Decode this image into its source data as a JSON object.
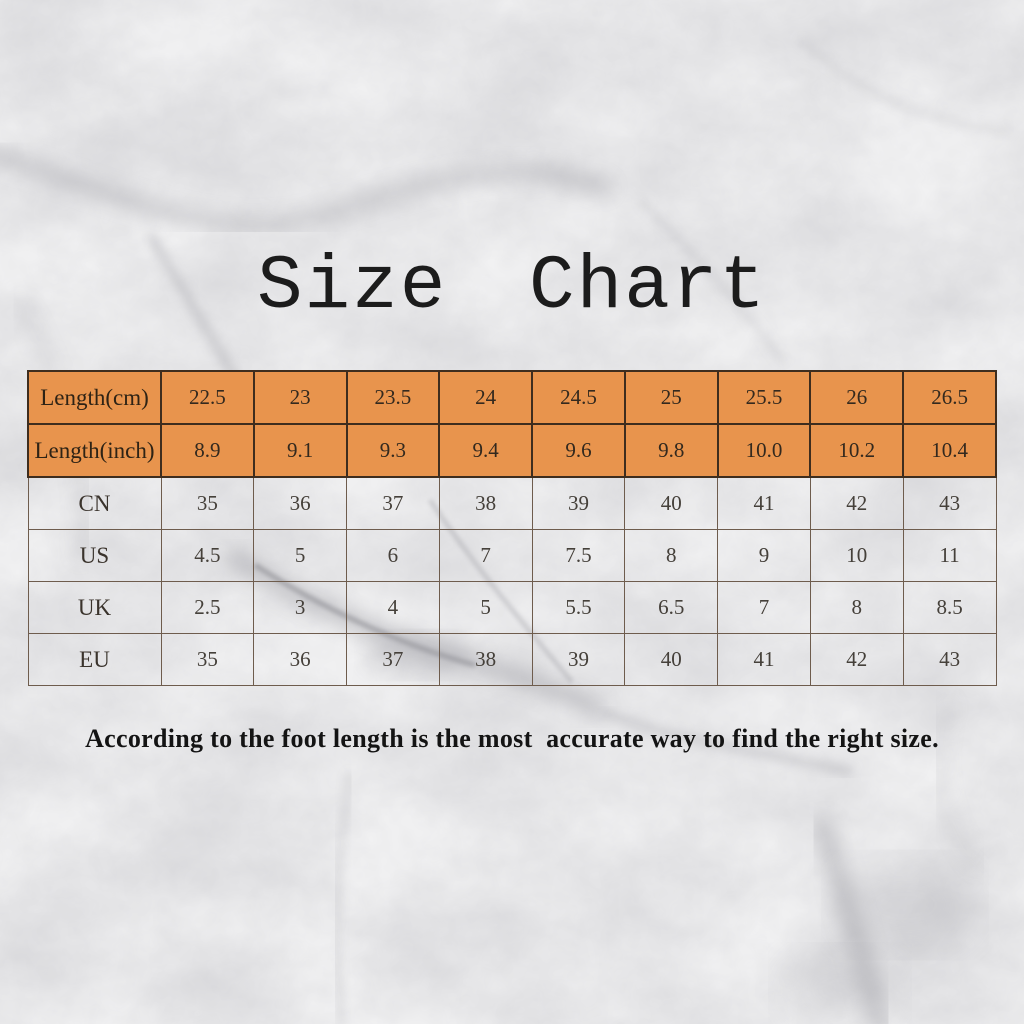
{
  "background_texture": "marble",
  "colors": {
    "accent_orange": "#E8944D",
    "border_dark": "#3E2D1E",
    "border_light": "#6E5C4D",
    "title_text": "#1C1C1C"
  },
  "chart_data": {
    "type": "table",
    "title": "Size Chart",
    "note": "According to the foot length is the most  accurate way to find the right size.",
    "rows": [
      {
        "label": "Length(cm)",
        "highlight": true,
        "values": [
          "22.5",
          "23",
          "23.5",
          "24",
          "24.5",
          "25",
          "25.5",
          "26",
          "26.5"
        ]
      },
      {
        "label": "Length(inch)",
        "highlight": true,
        "values": [
          "8.9",
          "9.1",
          "9.3",
          "9.4",
          "9.6",
          "9.8",
          "10.0",
          "10.2",
          "10.4"
        ]
      },
      {
        "label": "CN",
        "highlight": false,
        "values": [
          "35",
          "36",
          "37",
          "38",
          "39",
          "40",
          "41",
          "42",
          "43"
        ]
      },
      {
        "label": "US",
        "highlight": false,
        "values": [
          "4.5",
          "5",
          "6",
          "7",
          "7.5",
          "8",
          "9",
          "10",
          "11"
        ]
      },
      {
        "label": "UK",
        "highlight": false,
        "values": [
          "2.5",
          "3",
          "4",
          "5",
          "5.5",
          "6.5",
          "7",
          "8",
          "8.5"
        ]
      },
      {
        "label": "EU",
        "highlight": false,
        "values": [
          "35",
          "36",
          "37",
          "38",
          "39",
          "40",
          "41",
          "42",
          "43"
        ]
      }
    ]
  }
}
